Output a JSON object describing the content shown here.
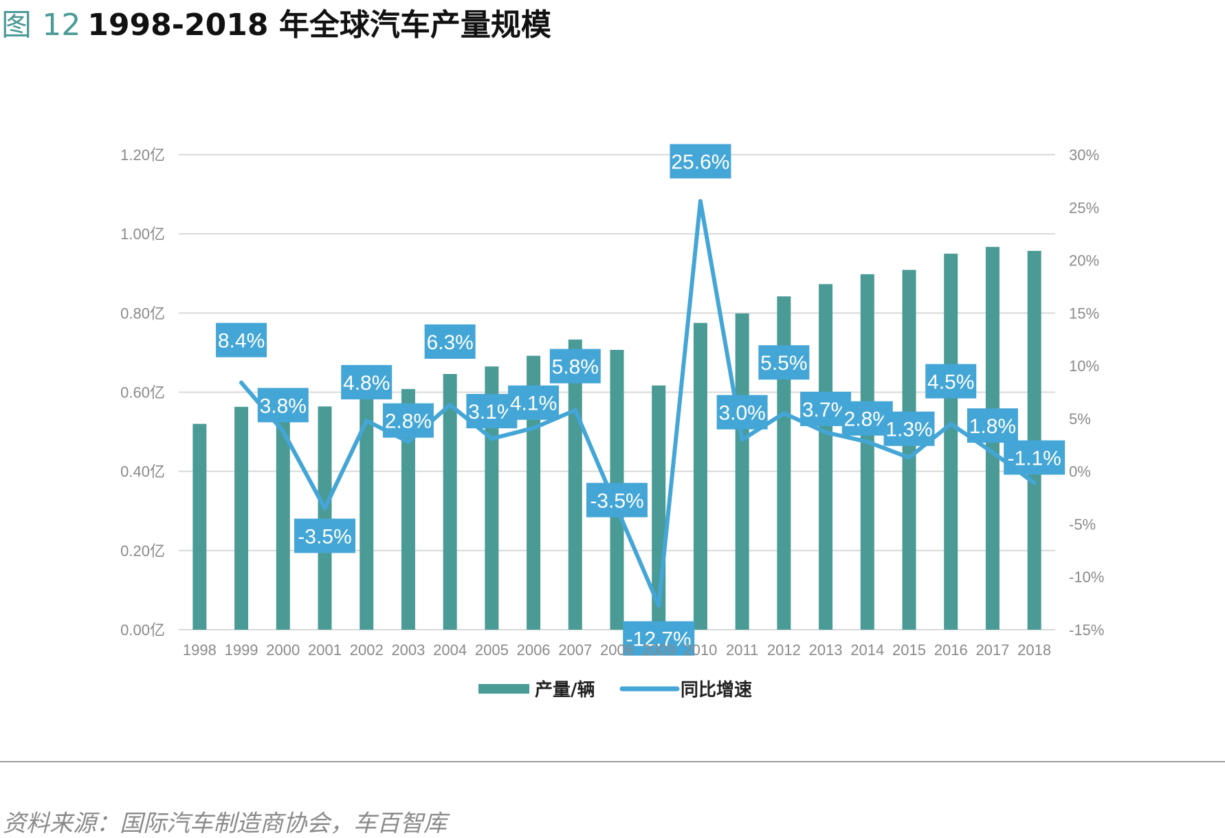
{
  "figure": {
    "label": "图",
    "number": "12",
    "title": "1998-2018 年全球汽车产量规模"
  },
  "source": "资料来源：国际汽车制造商协会，车百智库",
  "colors": {
    "bar": "#4a9a96",
    "line": "#44a6d6",
    "label_bg": "#44a6d6",
    "grid": "#d9d9d9",
    "tick": "#8a8a8a"
  },
  "chart_data": {
    "type": "bar",
    "categories": [
      "1998",
      "1999",
      "2000",
      "2001",
      "2002",
      "2003",
      "2004",
      "2005",
      "2006",
      "2007",
      "2008",
      "2009",
      "2010",
      "2011",
      "2012",
      "2013",
      "2014",
      "2015",
      "2016",
      "2017",
      "2018"
    ],
    "series": [
      {
        "name": "产量/辆",
        "type": "bar",
        "axis": "left",
        "values": [
          0.52,
          0.563,
          0.584,
          0.564,
          0.591,
          0.608,
          0.646,
          0.665,
          0.692,
          0.733,
          0.707,
          0.617,
          0.775,
          0.799,
          0.842,
          0.873,
          0.898,
          0.909,
          0.95,
          0.967,
          0.957
        ]
      },
      {
        "name": "同比增速",
        "type": "line",
        "axis": "right",
        "values": [
          null,
          8.4,
          3.8,
          -3.5,
          4.8,
          2.8,
          6.3,
          3.1,
          4.1,
          5.8,
          -3.5,
          -12.7,
          25.6,
          3.0,
          5.5,
          3.7,
          2.8,
          1.3,
          4.5,
          1.8,
          -1.1
        ],
        "labels": [
          "",
          "8.4%",
          "3.8%",
          "-3.5%",
          "4.8%",
          "2.8%",
          "6.3%",
          "3.1%",
          "4.1%",
          "5.8%",
          "-3.5%",
          "-12.7%",
          "25.6%",
          "3.0%",
          "5.5%",
          "3.7%",
          "2.8%",
          "1.3%",
          "4.5%",
          "1.8%",
          "-1.1%"
        ]
      }
    ],
    "y_left": {
      "ylim": [
        0,
        1.2
      ],
      "ticks": [
        0,
        0.2,
        0.4,
        0.6,
        0.8,
        1.0,
        1.2
      ],
      "tick_labels": [
        "0.00亿",
        "0.20亿",
        "0.40亿",
        "0.60亿",
        "0.80亿",
        "1.00亿",
        "1.20亿"
      ]
    },
    "y_right": {
      "ylim": [
        -15,
        30
      ],
      "ticks": [
        -15,
        -10,
        -5,
        0,
        5,
        10,
        15,
        20,
        25,
        30
      ],
      "tick_labels": [
        "-15%",
        "-10%",
        "-5%",
        "0%",
        "5%",
        "10%",
        "15%",
        "20%",
        "25%",
        "30%"
      ]
    },
    "grid": true,
    "legend": {
      "position": "bottom",
      "items": [
        "产量/辆",
        "同比增速"
      ]
    }
  }
}
